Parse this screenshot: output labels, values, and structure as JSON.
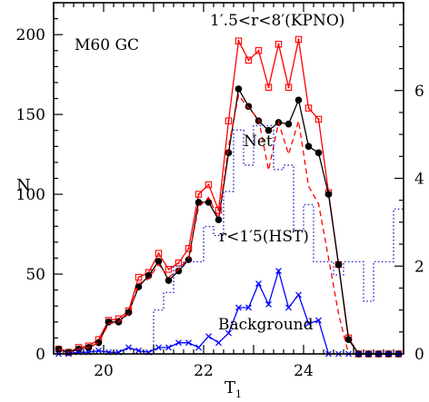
{
  "chart_data": {
    "type": "line",
    "xlabel": "T",
    "xlabel_sub": "1",
    "ylabel": "N",
    "xlim": [
      19,
      26
    ],
    "ylim": [
      0,
      220
    ],
    "right_ylim": [
      0,
      8
    ],
    "x_ticks": [
      20,
      22,
      24
    ],
    "y_ticks": [
      0,
      50,
      100,
      150,
      200
    ],
    "right_ticks": [
      0,
      2,
      4,
      6
    ],
    "right_tick_labels": [
      "0",
      "2",
      "4",
      "6"
    ],
    "annotations": {
      "object": "M60 GC",
      "kpno": "1′.5<r<8′(KPNO)",
      "net": "Net",
      "hst": "r<1′5(HST)",
      "background": "Background"
    },
    "series": [
      {
        "key": "kpno_total",
        "color": "#ff0000",
        "marker": "open-square",
        "line": "solid",
        "x": [
          19.1,
          19.3,
          19.5,
          19.7,
          19.9,
          20.1,
          20.3,
          20.5,
          20.7,
          20.9,
          21.1,
          21.3,
          21.5,
          21.7,
          21.9,
          22.1,
          22.3,
          22.5,
          22.7,
          22.9,
          23.1,
          23.3,
          23.5,
          23.7,
          23.9,
          24.1,
          24.3,
          24.5,
          24.7,
          24.9,
          25.1,
          25.3,
          25.5,
          25.7,
          25.9
        ],
        "y": [
          3,
          1,
          4,
          5,
          9,
          21,
          22,
          27,
          48,
          51,
          63,
          53,
          57,
          66,
          100,
          106,
          90,
          146,
          196,
          184,
          190,
          167,
          194,
          167,
          197,
          154,
          147,
          101,
          56,
          10,
          0,
          0,
          0,
          0,
          0
        ]
      },
      {
        "key": "net",
        "color": "#000000",
        "marker": "filled-circle",
        "line": "solid",
        "x": [
          19.1,
          19.3,
          19.5,
          19.7,
          19.9,
          20.1,
          20.3,
          20.5,
          20.7,
          20.9,
          21.1,
          21.3,
          21.5,
          21.7,
          21.9,
          22.1,
          22.3,
          22.5,
          22.7,
          22.9,
          23.1,
          23.3,
          23.5,
          23.7,
          23.9,
          24.1,
          24.3,
          24.5,
          24.7,
          24.9,
          25.1,
          25.3,
          25.5,
          25.7,
          25.9
        ],
        "y": [
          3,
          1,
          3,
          4,
          7,
          20,
          20,
          26,
          42,
          49,
          58,
          46,
          52,
          59,
          95,
          95,
          84,
          126,
          166,
          155,
          146,
          140,
          145,
          144,
          159,
          130,
          126,
          100,
          56,
          9,
          0,
          0,
          0,
          0,
          0
        ]
      },
      {
        "key": "scaled",
        "color": "#ff0000",
        "marker": "none",
        "line": "dashed",
        "x": [
          19.1,
          19.3,
          19.5,
          19.7,
          19.9,
          20.1,
          20.3,
          20.5,
          20.7,
          20.9,
          21.1,
          21.3,
          21.5,
          21.7,
          21.9,
          22.1,
          22.3,
          22.5,
          22.7,
          22.9,
          23.1,
          23.3,
          23.5,
          23.7,
          23.9,
          24.1,
          24.3,
          24.5,
          24.7,
          24.9,
          25.1,
          25.3,
          25.5,
          25.7,
          25.9
        ],
        "y": [
          3,
          1,
          3,
          4,
          7,
          19,
          20,
          25,
          44,
          47,
          56,
          48,
          53,
          60,
          92,
          98,
          85,
          130,
          162,
          154,
          147,
          115,
          145,
          125,
          146,
          105,
          94,
          60,
          25,
          0,
          0,
          0,
          0,
          0,
          0
        ]
      },
      {
        "key": "background",
        "color": "#0000ff",
        "marker": "cross",
        "line": "solid",
        "x": [
          19.1,
          19.3,
          19.5,
          19.7,
          19.9,
          20.1,
          20.3,
          20.5,
          20.7,
          20.9,
          21.1,
          21.3,
          21.5,
          21.7,
          21.9,
          22.1,
          22.3,
          22.5,
          22.7,
          22.9,
          23.1,
          23.3,
          23.5,
          23.7,
          23.9,
          24.1,
          24.3,
          24.5,
          24.7,
          24.9,
          25.1,
          25.3,
          25.5,
          25.7,
          25.9
        ],
        "y": [
          0,
          0,
          1,
          1,
          2,
          1,
          1,
          4,
          2,
          1,
          4,
          4,
          7,
          7,
          4,
          11,
          7,
          13,
          29,
          29,
          44,
          31,
          52,
          29,
          37,
          19,
          21,
          0,
          0,
          0,
          0,
          0,
          0,
          0,
          0
        ]
      },
      {
        "key": "hst",
        "color": "#3333cc",
        "marker": "none",
        "line": "dotted-step",
        "axis": "right",
        "bin_width": 0.2,
        "x": [
          20.9,
          21.1,
          21.3,
          21.5,
          21.7,
          21.9,
          22.1,
          22.3,
          22.5,
          22.7,
          22.9,
          23.1,
          23.3,
          23.5,
          23.7,
          23.9,
          24.1,
          24.3,
          24.5,
          24.7,
          24.9,
          25.1,
          25.3,
          25.5,
          25.7,
          25.9
        ],
        "y": [
          0,
          1.0,
          1.4,
          2.0,
          2.1,
          2.1,
          2.9,
          2.7,
          3.7,
          5.1,
          4.3,
          5.2,
          5.2,
          4.2,
          4.3,
          2.8,
          3.4,
          2.1,
          2.1,
          1.8,
          2.1,
          2.1,
          1.2,
          2.1,
          2.1,
          3.3
        ]
      }
    ]
  }
}
